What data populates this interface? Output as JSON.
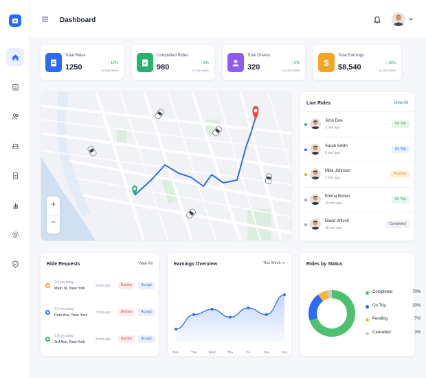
{
  "header": {
    "title": "Dashboard"
  },
  "stats": [
    {
      "label": "Total Rides",
      "value": "1250",
      "change": "↑ 12%",
      "period": "vs last week",
      "color": "#2a6bf2",
      "icon": "clipboard-icon"
    },
    {
      "label": "Completed Rides",
      "value": "980",
      "change": "↑ 8%",
      "period": "vs last week",
      "color": "#28b16c",
      "icon": "clipboard-check-icon"
    },
    {
      "label": "Total Drivers",
      "value": "320",
      "change": "↑ 5%",
      "period": "vs last week",
      "color": "#8b5cf6",
      "icon": "user-icon"
    },
    {
      "label": "Total Earnings",
      "value": "$8,540",
      "change": "↑ 15%",
      "period": "vs last week",
      "color": "#f5a524",
      "icon": "dollar-icon"
    }
  ],
  "live_rides": {
    "title": "Live Rides",
    "view_all": "View All",
    "rows": [
      {
        "name": "John Doe",
        "time": "2 min ago",
        "status": "On Trip",
        "dot": "#28b16c",
        "bg": "#e6f6ec",
        "fg": "#28a35e"
      },
      {
        "name": "Sarah Smith",
        "time": "5 min ago",
        "status": "On Trip",
        "dot": "#2a6bf2",
        "bg": "#e8effe",
        "fg": "#2a6bf2"
      },
      {
        "name": "Mike Johnson",
        "time": "7 min ago",
        "status": "Pending",
        "dot": "#f5a524",
        "bg": "#fdf1dc",
        "fg": "#e09016"
      },
      {
        "name": "Emma Brown",
        "time": "10 min ago",
        "status": "On Trip",
        "dot": "#9aa1ad",
        "bg": "#e6f6ec",
        "fg": "#28a35e"
      },
      {
        "name": "David Wilson",
        "time": "15 min ago",
        "status": "Completed",
        "dot": "#9aa1ad",
        "bg": "#f0f1f4",
        "fg": "#4b5568"
      }
    ]
  },
  "ride_requests": {
    "title": "Ride Requests",
    "view_all": "View All",
    "rows": [
      {
        "distance": "2.5 km away",
        "address": "Main St, New York",
        "time": "2 min ago",
        "decline": "Decline",
        "accept": "Accept",
        "color": "#f5a524"
      },
      {
        "distance": "3.2 km away",
        "address": "Park Ave, New York",
        "time": "3 min ago",
        "decline": "Decline",
        "accept": "Accept",
        "color": "#2a6bf2"
      },
      {
        "distance": "1.8 km away",
        "address": "3rd Ave, New York",
        "time": "4 min ago",
        "decline": "Decline",
        "accept": "Accept",
        "color": "#28b16c"
      }
    ]
  },
  "earnings": {
    "title": "Earnings Overview",
    "range": "This Week",
    "chart_data": {
      "type": "area",
      "categories": [
        "Mon",
        "Tue",
        "Wed",
        "Thu",
        "Fri",
        "Sat",
        "Sun"
      ],
      "values": [
        20,
        42,
        50,
        38,
        52,
        42,
        72
      ],
      "ylim": [
        0,
        100
      ],
      "color": "#2a6bf2"
    }
  },
  "status": {
    "title": "Rides by Status",
    "chart_data": {
      "type": "pie",
      "slices": [
        {
          "label": "Completed",
          "value": 70,
          "display": "70%",
          "color": "#4cc270"
        },
        {
          "label": "On Trip",
          "value": 20,
          "display": "20%",
          "color": "#2a6bf2"
        },
        {
          "label": "Pending",
          "value": 7,
          "display": "7%",
          "color": "#f5b83d"
        },
        {
          "label": "Cancelled",
          "value": 3,
          "display": "3%",
          "color": "#c9cdd5"
        }
      ]
    }
  },
  "map": {
    "zoom_in": "+",
    "zoom_out": "−"
  }
}
